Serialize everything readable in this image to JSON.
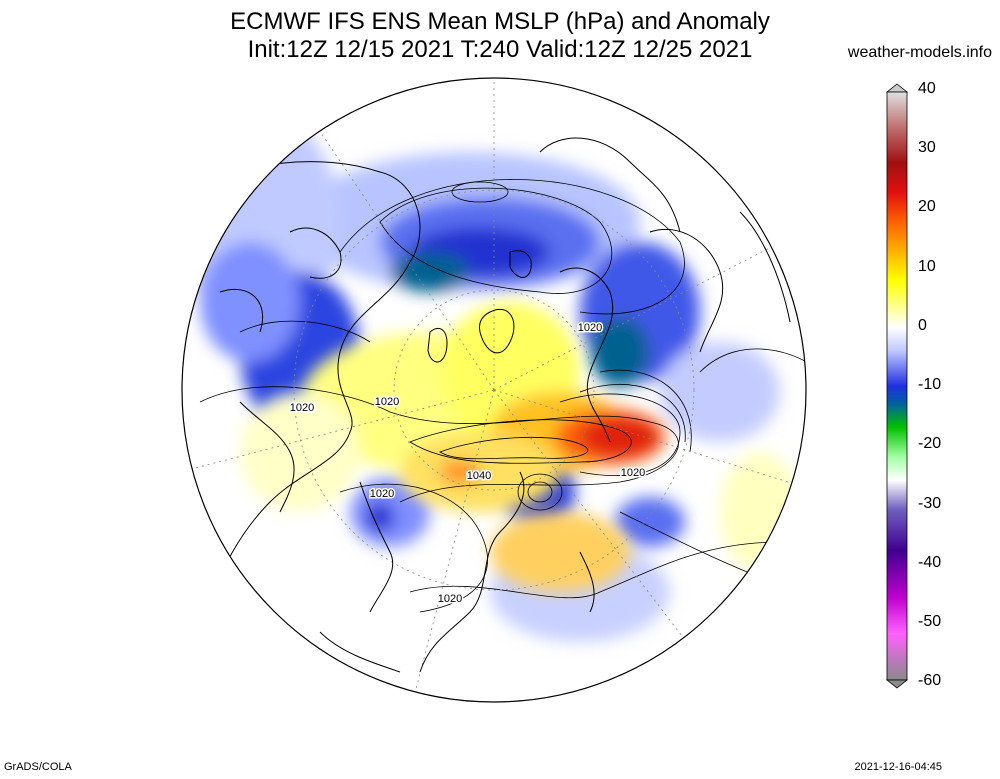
{
  "title_line1": "ECMWF IFS ENS Mean MSLP (hPa) and Anomaly",
  "title_line2": "Init:12Z 12/15 2021  T:240 Valid:12Z 12/25 2021",
  "site": "weather-models.info",
  "credit": "GrADS/COLA",
  "timestamp": "2021-12-16-04:45",
  "colorbar": {
    "ticks": [
      "40",
      "30",
      "20",
      "10",
      "0",
      "-10",
      "-20",
      "-30",
      "-40",
      "-50",
      "-60"
    ],
    "stops": [
      "#9a9a9a",
      "#b05050",
      "#d01010",
      "#ff8000",
      "#ffff00",
      "#ffffff",
      "#2020e0",
      "#00c000",
      "#ffffff",
      "#400090",
      "#ff00ff",
      "#9a9a9a"
    ]
  },
  "contour_labels": [
    "1020",
    "1020",
    "1020",
    "1040",
    "1020",
    "1020",
    "1020"
  ],
  "anomaly_colors": {
    "strong_positive": "#d82010",
    "positive": "#ffb000",
    "weak_positive": "#ffff60",
    "weak_negative": "#a0b0ff",
    "negative": "#2030d0",
    "strong_negative": "#006090"
  }
}
